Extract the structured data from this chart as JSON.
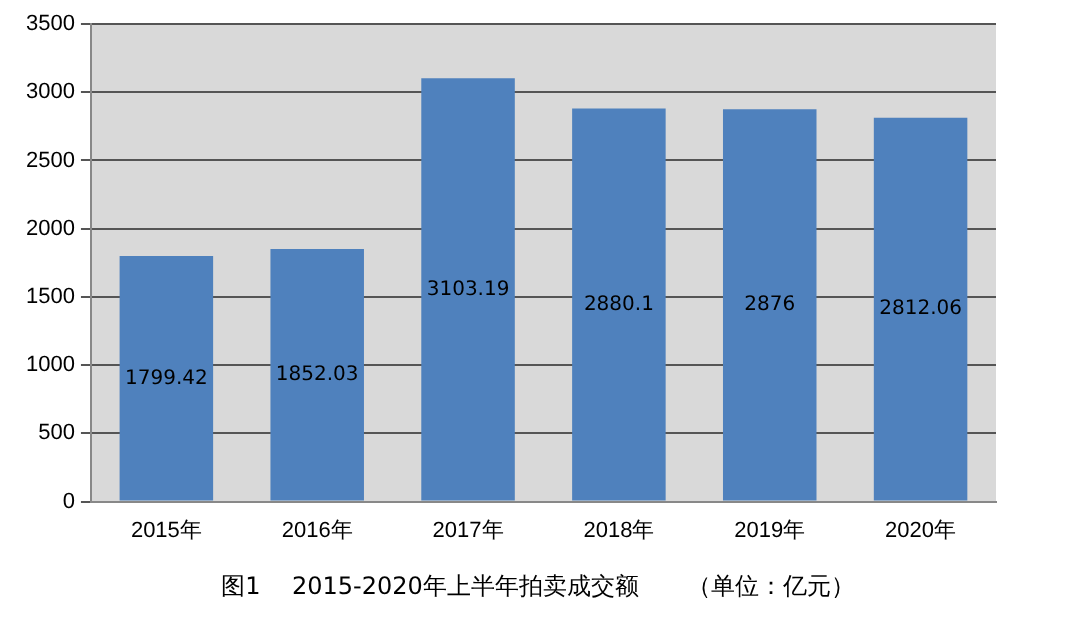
{
  "chart_data": {
    "type": "bar",
    "title": "图1　 2015-2020年上半年拍卖成交额　　（单位：亿元）",
    "categories": [
      "2015年",
      "2016年",
      "2017年",
      "2018年",
      "2019年",
      "2020年"
    ],
    "values": [
      1799.42,
      1852.03,
      3103.19,
      2880.1,
      2876,
      2812.06
    ],
    "color": "#4f81bd",
    "ylim": [
      0,
      3500
    ],
    "yticks": [
      0,
      500,
      1000,
      1500,
      2000,
      2500,
      3000,
      3500
    ],
    "grid": "y",
    "data_labels": true
  }
}
